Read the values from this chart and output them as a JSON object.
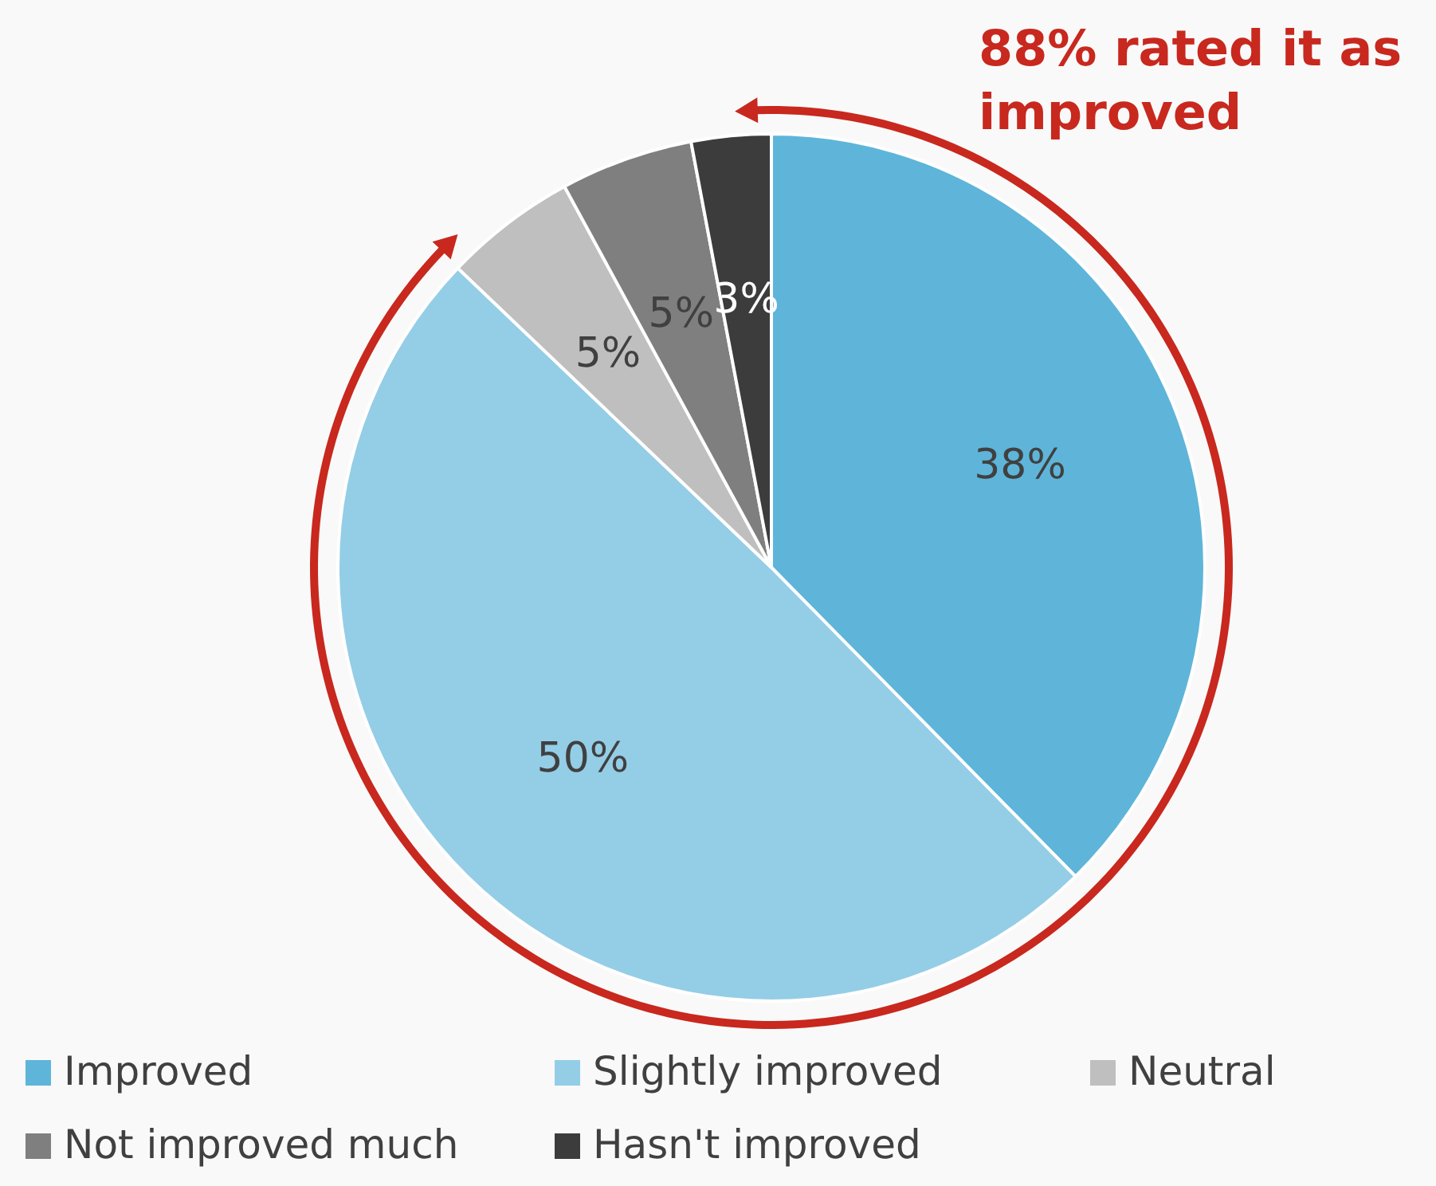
{
  "chart_data": {
    "type": "pie",
    "categories": [
      "Improved",
      "Slightly improved",
      "Neutral",
      "Not improved much",
      "Hasn't improved"
    ],
    "values": [
      38,
      50,
      5,
      5,
      3
    ],
    "value_labels": [
      "38%",
      "50%",
      "5%",
      "5%",
      "3%"
    ],
    "colors": [
      "#5eb5d9",
      "#94cde6",
      "#bfbfbf",
      "#7f7f7f",
      "#3c3c3c"
    ],
    "annotations": [
      "88% rated it as improved"
    ],
    "legend": "bottom"
  }
}
